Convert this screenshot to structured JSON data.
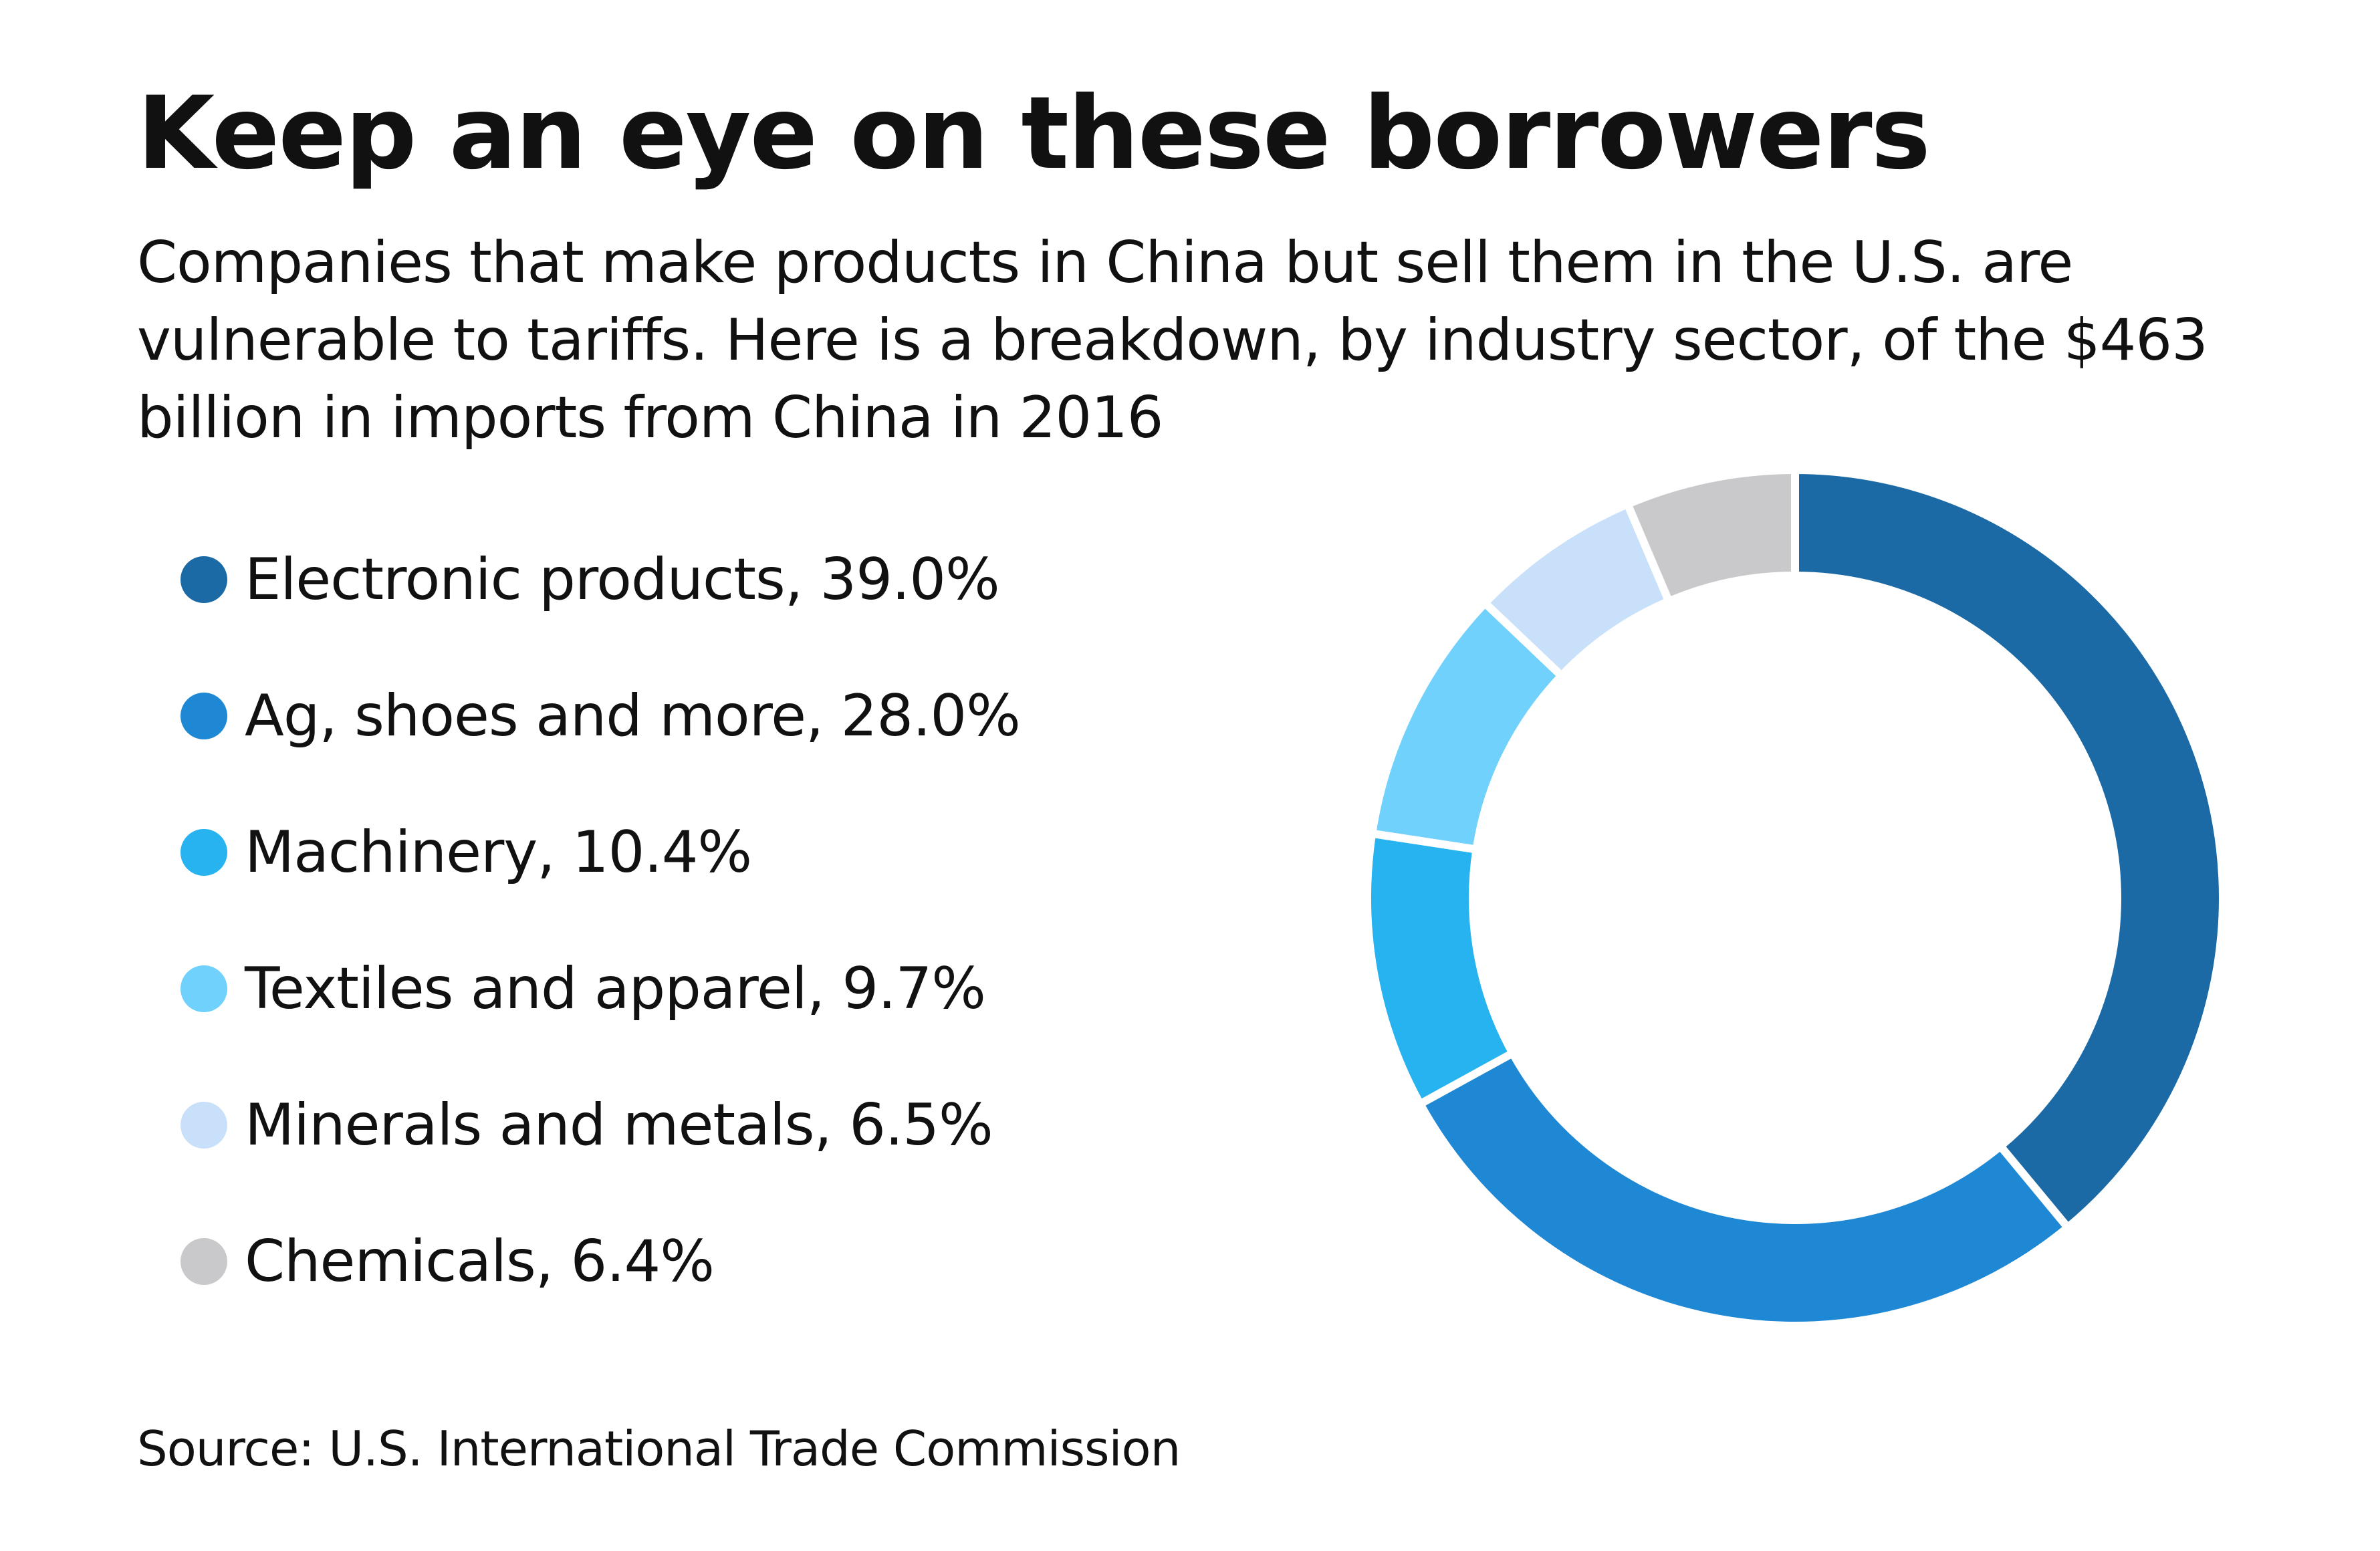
{
  "chart_data": {
    "type": "pie",
    "title": "Keep an eye on these borrowers",
    "subtitle": "Companies that make products in China but sell them in the U.S. are vulnerable to tariffs. Here is a breakdown, by industry sector, of the $463 billion in imports from China in 2016",
    "donut": true,
    "start": "12 o'clock",
    "direction": "clockwise",
    "slices": [
      {
        "label": "Electronic products, 39.0%",
        "name": "Electronic products",
        "value": 39.0,
        "color": "#1b6aa5"
      },
      {
        "label": "Ag, shoes and more, 28.0%",
        "name": "Ag, shoes and more",
        "value": 28.0,
        "color": "#1e88d5"
      },
      {
        "label": "Machinery, 10.4%",
        "name": "Machinery",
        "value": 10.4,
        "color": "#26b3ef"
      },
      {
        "label": "Textiles and apparel, 9.7%",
        "name": "Textiles and apparel",
        "value": 9.7,
        "color": "#70d1fd"
      },
      {
        "label": "Minerals and metals, 6.5%",
        "name": "Minerals and metals",
        "value": 6.5,
        "color": "#c8e0fa"
      },
      {
        "label": "Chemicals, 6.4%",
        "name": "Chemicals",
        "value": 6.4,
        "color": "#c9c9cb"
      }
    ],
    "legend_position": "left",
    "source": "Source: U.S. International Trade Commission"
  }
}
